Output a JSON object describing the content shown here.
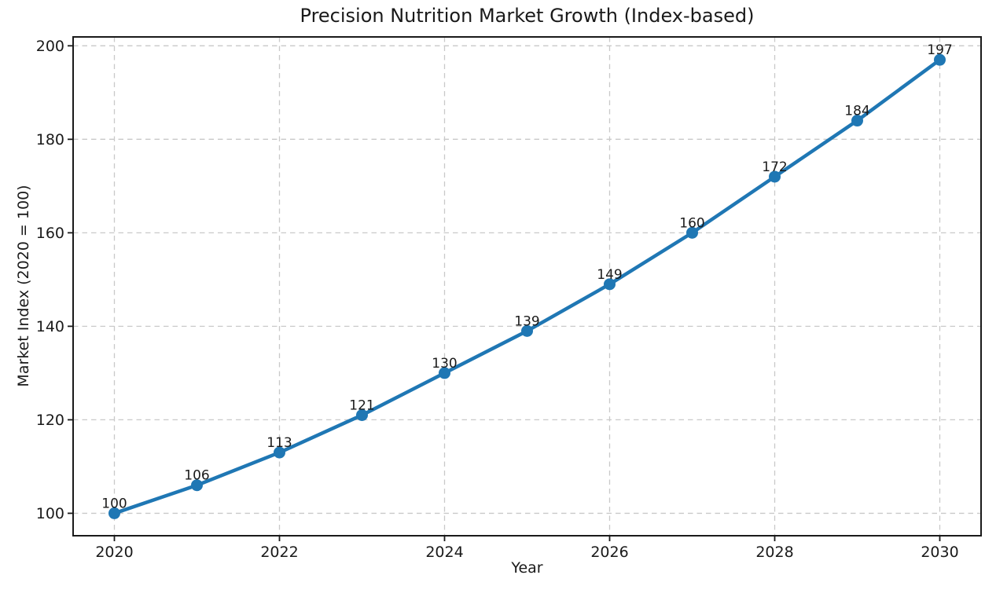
{
  "chart_data": {
    "type": "line",
    "title": "Precision Nutrition Market Growth (Index-based)",
    "xlabel": "Year",
    "ylabel": "Market Index (2020 = 100)",
    "x": [
      2020,
      2021,
      2022,
      2023,
      2024,
      2025,
      2026,
      2027,
      2028,
      2029,
      2030
    ],
    "values": [
      100,
      106,
      113,
      121,
      130,
      139,
      149,
      160,
      172,
      184,
      197
    ],
    "point_labels": [
      "100",
      "106",
      "113",
      "121",
      "130",
      "139",
      "149",
      "160",
      "172",
      "184",
      "197"
    ],
    "xticks": [
      2020,
      2022,
      2024,
      2026,
      2028,
      2030
    ],
    "xtick_labels": [
      "2020",
      "2022",
      "2024",
      "2026",
      "2028",
      "2030"
    ],
    "yticks": [
      100,
      120,
      140,
      160,
      180,
      200
    ],
    "ytick_labels": [
      "100",
      "120",
      "140",
      "160",
      "180",
      "200"
    ],
    "xlim": [
      2019.5,
      2030.5
    ],
    "ylim": [
      95.2,
      201.9
    ],
    "grid": true,
    "grid_style": "dashed",
    "legend": "none",
    "marker": "circle",
    "colors": {
      "line": "#1f77b4",
      "marker": "#1f77b4",
      "grid": "#c9c9c9",
      "spine": "#1a1a1a",
      "text": "#1a1a1a",
      "background": "#ffffff"
    }
  }
}
